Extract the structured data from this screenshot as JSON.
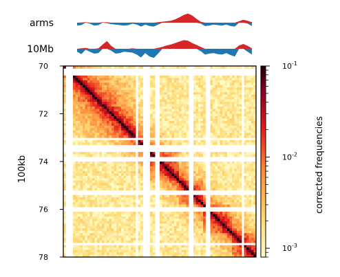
{
  "chart_data": [
    {
      "type": "area",
      "label": "arms",
      "series": [
        {
          "color": "#d62728",
          "values": [
            0.0,
            0.02,
            0.05,
            0.0,
            0.0,
            0.0,
            0.04,
            0.04,
            0.0,
            -0.01,
            0.0,
            0.0,
            0.0,
            0.02,
            0.0,
            0.0,
            0.0,
            0.0,
            0.0,
            0.05,
            0.1,
            0.15,
            0.2,
            0.35,
            0.55,
            0.8,
            0.95,
            0.75,
            0.4,
            0.1,
            0.0,
            0.0,
            0.0,
            0.0,
            0.0,
            0.0,
            0.0,
            0.0,
            0.15,
            0.3,
            0.2,
            0.05
          ]
        },
        {
          "color": "#1f77b4",
          "values": [
            -0.3,
            -0.25,
            0.0,
            -0.1,
            -0.3,
            -0.25,
            0.0,
            -0.05,
            -0.15,
            -0.2,
            -0.25,
            -0.3,
            -0.25,
            -0.1,
            -0.2,
            -0.4,
            -0.2,
            -0.35,
            -0.4,
            -0.2,
            0.0,
            0.0,
            0.0,
            0.0,
            0.0,
            0.0,
            0.0,
            0.0,
            0.0,
            -0.1,
            -0.35,
            -0.3,
            -0.2,
            -0.25,
            -0.3,
            -0.2,
            -0.35,
            -0.4,
            0.0,
            0.0,
            -0.1,
            -0.35
          ]
        }
      ]
    },
    {
      "type": "area",
      "label": "10Mb",
      "series": [
        {
          "color": "#d62728",
          "values": [
            0.0,
            0.05,
            0.1,
            0.0,
            0.0,
            0.05,
            0.45,
            0.8,
            0.3,
            0.0,
            0.0,
            0.0,
            0.0,
            0.05,
            0.0,
            0.0,
            0.0,
            0.0,
            0.0,
            0.1,
            0.2,
            0.35,
            0.45,
            0.6,
            0.75,
            0.9,
            0.85,
            0.6,
            0.4,
            0.2,
            0.0,
            0.0,
            0.0,
            0.0,
            0.0,
            0.0,
            0.0,
            0.0,
            0.35,
            0.5,
            0.3,
            0.05
          ]
        },
        {
          "color": "#1f77b4",
          "values": [
            -0.3,
            -0.55,
            -0.1,
            -0.3,
            -0.5,
            -0.45,
            0.0,
            0.0,
            -0.2,
            -0.5,
            -0.45,
            -0.3,
            -0.35,
            -0.4,
            -0.6,
            -0.9,
            -0.45,
            -0.8,
            -0.95,
            -0.5,
            0.0,
            0.0,
            0.0,
            0.0,
            0.0,
            0.0,
            0.0,
            0.0,
            0.0,
            -0.25,
            -0.6,
            -0.5,
            -0.45,
            -0.55,
            -0.6,
            -0.45,
            -0.65,
            -0.8,
            0.0,
            0.0,
            -0.3,
            -0.6
          ]
        }
      ]
    },
    {
      "type": "heatmap",
      "ylabel": "100kb",
      "ylim": [
        70,
        78
      ],
      "yticks": [
        "70",
        "72",
        "74",
        "76",
        "78"
      ],
      "n_bins": 80,
      "empty_bins": [
        1,
        2,
        3,
        30,
        33,
        34,
        35,
        38,
        39,
        52,
        53,
        59,
        60,
        74
      ],
      "tads": [
        [
          4,
          30
        ],
        [
          30,
          36
        ],
        [
          36,
          48
        ],
        [
          48,
          58
        ],
        [
          58,
          70
        ],
        [
          70,
          80
        ]
      ],
      "colorscale": [
        "#ffffcc",
        "#fed976",
        "#fd8d3c",
        "#e31a1c",
        "#800026",
        "#000000"
      ],
      "colorbar": {
        "label": "corrected frequencies",
        "scale": "log",
        "range": [
          0.0008,
          0.1
        ],
        "tick_exponents": [
          "-1",
          "-2",
          "-3"
        ],
        "tick_base": "10"
      }
    }
  ]
}
